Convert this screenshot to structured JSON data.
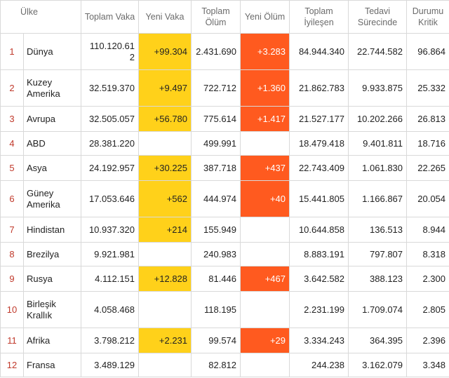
{
  "headers": {
    "rank": "",
    "country": "Ülke",
    "total_cases": "Toplam Vaka",
    "new_cases": "Yeni Vaka",
    "total_deaths": "Toplam Ölüm",
    "new_deaths": "Yeni Ölüm",
    "recovered": "Toplam İyileşen",
    "active": "Tedavi Sürecinde",
    "critical": "Durumu Kritik"
  },
  "rows": [
    {
      "rank": "1",
      "country": "Dünya",
      "total_cases": "110.120.612",
      "new_cases": "+99.304",
      "total_deaths": "2.431.690",
      "new_deaths": "+3.283",
      "recovered": "84.944.340",
      "active": "22.744.582",
      "critical": "96.864"
    },
    {
      "rank": "2",
      "country": "Kuzey Amerika",
      "total_cases": "32.519.370",
      "new_cases": "+9.497",
      "total_deaths": "722.712",
      "new_deaths": "+1.360",
      "recovered": "21.862.783",
      "active": "9.933.875",
      "critical": "25.332"
    },
    {
      "rank": "3",
      "country": "Avrupa",
      "total_cases": "32.505.057",
      "new_cases": "+56.780",
      "total_deaths": "775.614",
      "new_deaths": "+1.417",
      "recovered": "21.527.177",
      "active": "10.202.266",
      "critical": "26.813"
    },
    {
      "rank": "4",
      "country": "ABD",
      "total_cases": "28.381.220",
      "new_cases": "",
      "total_deaths": "499.991",
      "new_deaths": "",
      "recovered": "18.479.418",
      "active": "9.401.811",
      "critical": "18.716"
    },
    {
      "rank": "5",
      "country": "Asya",
      "total_cases": "24.192.957",
      "new_cases": "+30.225",
      "total_deaths": "387.718",
      "new_deaths": "+437",
      "recovered": "22.743.409",
      "active": "1.061.830",
      "critical": "22.265"
    },
    {
      "rank": "6",
      "country": "Güney Amerika",
      "total_cases": "17.053.646",
      "new_cases": "+562",
      "total_deaths": "444.974",
      "new_deaths": "+40",
      "recovered": "15.441.805",
      "active": "1.166.867",
      "critical": "20.054"
    },
    {
      "rank": "7",
      "country": "Hindistan",
      "total_cases": "10.937.320",
      "new_cases": "+214",
      "total_deaths": "155.949",
      "new_deaths": "",
      "recovered": "10.644.858",
      "active": "136.513",
      "critical": "8.944"
    },
    {
      "rank": "8",
      "country": "Brezilya",
      "total_cases": "9.921.981",
      "new_cases": "",
      "total_deaths": "240.983",
      "new_deaths": "",
      "recovered": "8.883.191",
      "active": "797.807",
      "critical": "8.318"
    },
    {
      "rank": "9",
      "country": "Rusya",
      "total_cases": "4.112.151",
      "new_cases": "+12.828",
      "total_deaths": "81.446",
      "new_deaths": "+467",
      "recovered": "3.642.582",
      "active": "388.123",
      "critical": "2.300"
    },
    {
      "rank": "10",
      "country": "Birleşik Krallık",
      "total_cases": "4.058.468",
      "new_cases": "",
      "total_deaths": "118.195",
      "new_deaths": "",
      "recovered": "2.231.199",
      "active": "1.709.074",
      "critical": "2.805"
    },
    {
      "rank": "11",
      "country": "Afrika",
      "total_cases": "3.798.212",
      "new_cases": "+2.231",
      "total_deaths": "99.574",
      "new_deaths": "+29",
      "recovered": "3.334.243",
      "active": "364.395",
      "critical": "2.396"
    },
    {
      "rank": "12",
      "country": "Fransa",
      "total_cases": "3.489.129",
      "new_cases": "",
      "total_deaths": "82.812",
      "new_deaths": "",
      "recovered": "244.238",
      "active": "3.162.079",
      "critical": "3.348"
    }
  ],
  "colors": {
    "new_cases_highlight": "#ffd11a",
    "new_deaths_highlight": "#ff5a1f",
    "rank_text": "#c0392b"
  }
}
